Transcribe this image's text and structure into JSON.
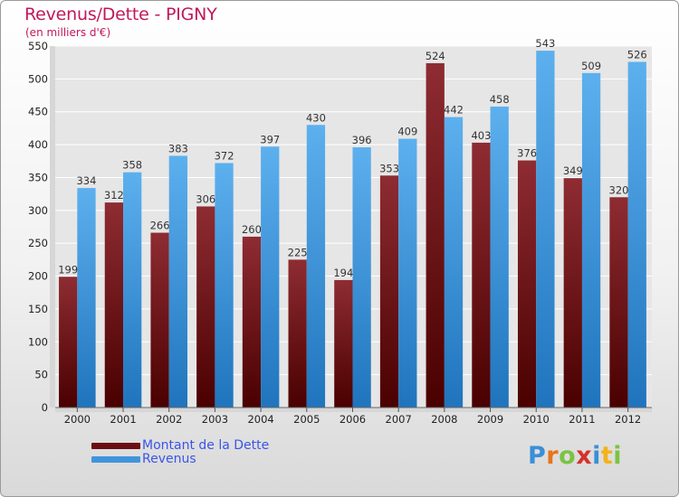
{
  "chart_data": {
    "type": "bar",
    "title": "Revenus/Dette - PIGNY",
    "subtitle": "(en milliers d'€)",
    "categories": [
      "2000",
      "2001",
      "2002",
      "2003",
      "2004",
      "2005",
      "2006",
      "2007",
      "2008",
      "2009",
      "2010",
      "2011",
      "2012"
    ],
    "series": [
      {
        "name": "Montant de la Dette",
        "color": "#7a1a1f",
        "values": [
          199,
          312,
          266,
          306,
          260,
          225,
          194,
          353,
          524,
          403,
          376,
          349,
          320
        ]
      },
      {
        "name": "Revenus",
        "color": "#4a9fe0",
        "values": [
          334,
          358,
          383,
          372,
          397,
          430,
          396,
          409,
          442,
          458,
          543,
          509,
          526
        ]
      }
    ],
    "ylim": [
      0,
      550
    ],
    "yticks": [
      0,
      50,
      100,
      150,
      200,
      250,
      300,
      350,
      400,
      450,
      500,
      550
    ],
    "grid": true,
    "legend_position": "bottom-left"
  },
  "logo": {
    "letters": [
      "P",
      "r",
      "o",
      "x",
      "i",
      "t",
      "i"
    ],
    "colors": [
      "#3a8fd8",
      "#e8731c",
      "#7cc242",
      "#d6312b",
      "#3a8fd8",
      "#f2b21b",
      "#7cc242"
    ]
  }
}
